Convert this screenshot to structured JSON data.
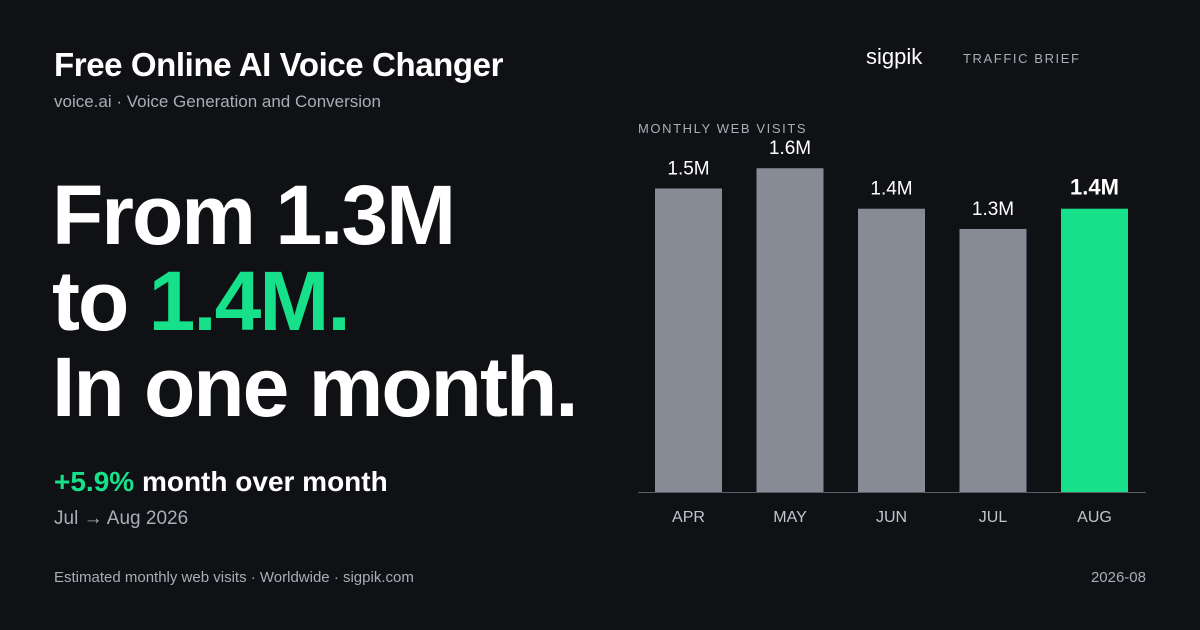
{
  "header": {
    "title": "Free Online AI Voice Changer",
    "subtitle": "voice.ai · Voice Generation and Conversion"
  },
  "headline": {
    "line1": "From 1.3M",
    "line2_prefix": "to ",
    "line2_highlight": "1.4M.",
    "line3": "In one month."
  },
  "change": {
    "percent": "+5.9%",
    "label": " month over month",
    "period": "Jul → Aug 2026"
  },
  "brand": {
    "name": "sigpik",
    "tag": "TRAFFIC BRIEF"
  },
  "footer": {
    "note": "Estimated monthly web visits · Worldwide · sigpik.com",
    "date": "2026-08"
  },
  "colors": {
    "background": "#0f1115",
    "accent": "#16e08a",
    "bar": "#878b96",
    "muted_text": "#a9adb5"
  },
  "chart_data": {
    "type": "bar",
    "title": "MONTHLY WEB VISITS",
    "categories": [
      "APR",
      "MAY",
      "JUN",
      "JUL",
      "AUG"
    ],
    "values": [
      1.5,
      1.6,
      1.4,
      1.3,
      1.4
    ],
    "value_labels": [
      "1.5M",
      "1.6M",
      "1.4M",
      "1.3M",
      "1.4M"
    ],
    "unit": "M",
    "highlight_index": 4,
    "ylim": [
      0,
      1.7
    ],
    "grid": false
  }
}
